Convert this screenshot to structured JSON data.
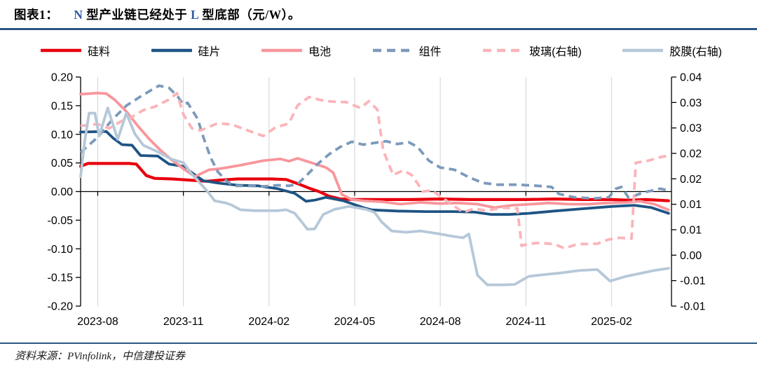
{
  "title": {
    "prefix": "图表1：",
    "segments": [
      {
        "text": "N",
        "color": "#2F5BA7"
      },
      {
        "text": " 型产业链已经处于 ",
        "color": "#000000"
      },
      {
        "text": "L",
        "color": "#2F5BA7"
      },
      {
        "text": " 型底部（元/W）。",
        "color": "#000000"
      }
    ]
  },
  "footer": {
    "source": "资料来源：PVinfolink，中信建投证券"
  },
  "colors": {
    "rule": "#2A5784",
    "grid": "#D9D9D9",
    "axis": "#000000",
    "silicon": "#E8000D",
    "wafer": "#1F5484",
    "cell": "#F8969C",
    "module": "#7C9ABB",
    "glass": "#FBB4B9",
    "film": "#B5C8D9"
  },
  "legend": {
    "items": [
      {
        "id": "silicon",
        "label": "硅料",
        "color": "#E8000D",
        "dash": false
      },
      {
        "id": "wafer",
        "label": "硅片",
        "color": "#1F5484",
        "dash": false
      },
      {
        "id": "cell",
        "label": "电池",
        "color": "#F8969C",
        "dash": false
      },
      {
        "id": "module",
        "label": "组件",
        "color": "#7C9ABB",
        "dash": true
      },
      {
        "id": "glass",
        "label": "玻璃(右轴)",
        "color": "#FBB4B9",
        "dash": true
      },
      {
        "id": "film",
        "label": "胶膜(右轴)",
        "color": "#B5C8D9",
        "dash": false
      }
    ]
  },
  "chart_data": {
    "type": "line",
    "title": "N 型产业链已经处于 L 型底部（元/W）",
    "x_axis": {
      "unit": "months since 2023-08",
      "tick_labels": [
        "2023-08",
        "2023-11",
        "2024-02",
        "2024-05",
        "2024-08",
        "2024-11",
        "2025-02"
      ],
      "tick_positions": [
        0,
        3,
        6,
        9,
        12,
        15,
        18
      ],
      "xlim": [
        -0.6,
        20.1
      ],
      "grid": true
    },
    "y_axis_left": {
      "tick_labels": [
        "0.20",
        "0.15",
        "0.10",
        "0.05",
        "0.00",
        "-0.05",
        "-0.10",
        "-0.15",
        "-0.20"
      ],
      "range": [
        -0.2,
        0.2
      ],
      "zero_line": true
    },
    "y_axis_right": {
      "tick_labels": [
        "0.04",
        "0.03",
        "0.03",
        "0.02",
        "0.02",
        "0.01",
        "0.01",
        "0.00",
        "-0.01",
        "-0.01"
      ],
      "range": [
        -0.012,
        0.042
      ]
    },
    "series": [
      {
        "id": "silicon",
        "name": "硅料",
        "axis": "left",
        "color": "#E8000D",
        "dash": false,
        "width": 4.2,
        "points": [
          [
            -0.6,
            0.044
          ],
          [
            -0.35,
            0.049
          ],
          [
            0.5,
            0.049
          ],
          [
            1.1,
            0.049
          ],
          [
            1.35,
            0.048
          ],
          [
            1.7,
            0.028
          ],
          [
            2.0,
            0.023
          ],
          [
            2.6,
            0.022
          ],
          [
            3.2,
            0.02
          ],
          [
            3.8,
            0.018
          ],
          [
            4.3,
            0.02
          ],
          [
            4.9,
            0.022
          ],
          [
            5.5,
            0.022
          ],
          [
            6.1,
            0.022
          ],
          [
            6.6,
            0.021
          ],
          [
            7.0,
            0.014
          ],
          [
            7.4,
            0.006
          ],
          [
            7.75,
            0.0
          ],
          [
            8.1,
            -0.008
          ],
          [
            8.5,
            -0.013
          ],
          [
            9.0,
            -0.014
          ],
          [
            10.0,
            -0.014
          ],
          [
            11.0,
            -0.014
          ],
          [
            12.0,
            -0.013
          ],
          [
            13.0,
            -0.014
          ],
          [
            14.0,
            -0.014
          ],
          [
            15.0,
            -0.014
          ],
          [
            16.0,
            -0.013
          ],
          [
            17.0,
            -0.014
          ],
          [
            18.0,
            -0.014
          ],
          [
            18.6,
            -0.015
          ],
          [
            19.2,
            -0.014
          ],
          [
            20.0,
            -0.016
          ]
        ]
      },
      {
        "id": "wafer",
        "name": "硅片",
        "axis": "left",
        "color": "#1F5484",
        "dash": false,
        "width": 3.8,
        "points": [
          [
            -0.6,
            0.104
          ],
          [
            0.3,
            0.105
          ],
          [
            0.55,
            0.093
          ],
          [
            0.85,
            0.082
          ],
          [
            1.2,
            0.081
          ],
          [
            1.5,
            0.063
          ],
          [
            2.1,
            0.062
          ],
          [
            2.5,
            0.048
          ],
          [
            3.0,
            0.044
          ],
          [
            3.35,
            0.031
          ],
          [
            3.7,
            0.019
          ],
          [
            4.2,
            0.015
          ],
          [
            4.9,
            0.011
          ],
          [
            5.6,
            0.01
          ],
          [
            6.3,
            0.005
          ],
          [
            6.9,
            -0.003
          ],
          [
            7.3,
            -0.017
          ],
          [
            7.6,
            -0.015
          ],
          [
            8.0,
            -0.01
          ],
          [
            8.6,
            -0.016
          ],
          [
            9.3,
            -0.028
          ],
          [
            9.6,
            -0.032
          ],
          [
            10.5,
            -0.034
          ],
          [
            11.5,
            -0.035
          ],
          [
            12.5,
            -0.035
          ],
          [
            13.2,
            -0.036
          ],
          [
            13.8,
            -0.04
          ],
          [
            14.4,
            -0.04
          ],
          [
            15.1,
            -0.038
          ],
          [
            16.0,
            -0.034
          ],
          [
            17.0,
            -0.03
          ],
          [
            18.0,
            -0.026
          ],
          [
            18.8,
            -0.024
          ],
          [
            19.4,
            -0.028
          ],
          [
            20.0,
            -0.038
          ]
        ]
      },
      {
        "id": "cell",
        "name": "电池",
        "axis": "left",
        "color": "#F8969C",
        "dash": false,
        "width": 3.8,
        "points": [
          [
            -0.6,
            0.17
          ],
          [
            0.0,
            0.172
          ],
          [
            0.3,
            0.171
          ],
          [
            0.6,
            0.16
          ],
          [
            1.0,
            0.14
          ],
          [
            1.4,
            0.115
          ],
          [
            1.8,
            0.092
          ],
          [
            2.2,
            0.072
          ],
          [
            2.6,
            0.055
          ],
          [
            3.0,
            0.04
          ],
          [
            3.4,
            0.026
          ],
          [
            3.9,
            0.038
          ],
          [
            4.3,
            0.04
          ],
          [
            5.0,
            0.046
          ],
          [
            5.8,
            0.054
          ],
          [
            6.4,
            0.057
          ],
          [
            6.7,
            0.053
          ],
          [
            7.0,
            0.058
          ],
          [
            7.5,
            0.05
          ],
          [
            8.0,
            0.042
          ],
          [
            8.25,
            0.033
          ],
          [
            8.55,
            -0.005
          ],
          [
            8.9,
            -0.014
          ],
          [
            9.3,
            -0.016
          ],
          [
            10.0,
            -0.018
          ],
          [
            10.6,
            -0.022
          ],
          [
            11.3,
            -0.019
          ],
          [
            12.0,
            -0.021
          ],
          [
            12.6,
            -0.02
          ],
          [
            13.3,
            -0.022
          ],
          [
            13.9,
            -0.028
          ],
          [
            14.5,
            -0.024
          ],
          [
            15.2,
            -0.022
          ],
          [
            15.8,
            -0.02
          ],
          [
            16.5,
            -0.022
          ],
          [
            17.2,
            -0.022
          ],
          [
            17.8,
            -0.02
          ],
          [
            18.5,
            -0.019
          ],
          [
            19.0,
            -0.017
          ],
          [
            19.5,
            -0.022
          ],
          [
            20.0,
            -0.032
          ]
        ]
      },
      {
        "id": "module",
        "name": "组件",
        "axis": "left",
        "color": "#7C9ABB",
        "dash": true,
        "width": 3.8,
        "points": [
          [
            -0.6,
            0.068
          ],
          [
            0.0,
            0.095
          ],
          [
            0.5,
            0.125
          ],
          [
            1.0,
            0.15
          ],
          [
            1.5,
            0.166
          ],
          [
            1.9,
            0.178
          ],
          [
            2.15,
            0.185
          ],
          [
            2.5,
            0.181
          ],
          [
            2.8,
            0.166
          ],
          [
            3.0,
            0.152
          ],
          [
            3.15,
            0.155
          ],
          [
            3.5,
            0.127
          ],
          [
            3.7,
            0.095
          ],
          [
            3.95,
            0.06
          ],
          [
            4.2,
            0.035
          ],
          [
            4.5,
            0.019
          ],
          [
            4.75,
            0.01
          ],
          [
            5.3,
            0.01
          ],
          [
            5.8,
            0.009
          ],
          [
            6.3,
            0.011
          ],
          [
            6.7,
            0.01
          ],
          [
            7.0,
            0.013
          ],
          [
            7.35,
            0.03
          ],
          [
            7.7,
            0.048
          ],
          [
            8.1,
            0.065
          ],
          [
            8.5,
            0.078
          ],
          [
            8.9,
            0.087
          ],
          [
            9.3,
            0.082
          ],
          [
            9.7,
            0.085
          ],
          [
            10.1,
            0.088
          ],
          [
            10.5,
            0.083
          ],
          [
            10.9,
            0.086
          ],
          [
            11.2,
            0.078
          ],
          [
            11.6,
            0.054
          ],
          [
            12.0,
            0.042
          ],
          [
            12.5,
            0.038
          ],
          [
            13.0,
            0.025
          ],
          [
            13.5,
            0.015
          ],
          [
            14.0,
            0.012
          ],
          [
            14.7,
            0.012
          ],
          [
            15.4,
            0.01
          ],
          [
            15.9,
            0.008
          ],
          [
            16.15,
            -0.004
          ],
          [
            16.7,
            -0.01
          ],
          [
            17.4,
            -0.012
          ],
          [
            17.9,
            -0.01
          ],
          [
            18.15,
            0.005
          ],
          [
            18.35,
            0.008
          ],
          [
            18.6,
            -0.011
          ],
          [
            19.1,
            -0.002
          ],
          [
            19.7,
            0.005
          ],
          [
            20.0,
            0.002
          ]
        ]
      },
      {
        "id": "glass",
        "name": "玻璃(右轴)",
        "axis": "right",
        "color": "#FBB4B9",
        "dash": true,
        "width": 3.8,
        "points": [
          [
            -0.6,
            0.0305
          ],
          [
            0.0,
            0.0309
          ],
          [
            0.4,
            0.0299
          ],
          [
            0.8,
            0.0315
          ],
          [
            1.2,
            0.0326
          ],
          [
            1.6,
            0.0342
          ],
          [
            2.0,
            0.035
          ],
          [
            2.5,
            0.0367
          ],
          [
            2.78,
            0.0382
          ],
          [
            3.0,
            0.0332
          ],
          [
            3.3,
            0.0299
          ],
          [
            3.6,
            0.0294
          ],
          [
            4.2,
            0.0311
          ],
          [
            4.7,
            0.0308
          ],
          [
            5.3,
            0.0293
          ],
          [
            5.8,
            0.0281
          ],
          [
            6.2,
            0.03
          ],
          [
            6.7,
            0.0311
          ],
          [
            7.0,
            0.0353
          ],
          [
            7.4,
            0.0373
          ],
          [
            7.8,
            0.0366
          ],
          [
            8.2,
            0.0362
          ],
          [
            8.7,
            0.0361
          ],
          [
            9.2,
            0.0347
          ],
          [
            9.5,
            0.0363
          ],
          [
            9.8,
            0.0343
          ],
          [
            10.0,
            0.0247
          ],
          [
            10.35,
            0.0189
          ],
          [
            10.7,
            0.02
          ],
          [
            11.0,
            0.0189
          ],
          [
            11.4,
            0.015
          ],
          [
            11.7,
            0.0153
          ],
          [
            12.0,
            0.0139
          ],
          [
            12.8,
            0.0101
          ],
          [
            13.2,
            0.011
          ],
          [
            13.6,
            0.0105
          ],
          [
            14.2,
            0.0112
          ],
          [
            14.7,
            0.011
          ],
          [
            14.85,
            0.0022
          ],
          [
            15.1,
            0.0027
          ],
          [
            15.5,
            0.0029
          ],
          [
            16.0,
            0.0026
          ],
          [
            16.35,
            0.0016
          ],
          [
            16.8,
            0.0026
          ],
          [
            17.5,
            0.0027
          ],
          [
            17.9,
            0.0037
          ],
          [
            18.3,
            0.0041
          ],
          [
            18.7,
            0.0039
          ],
          [
            18.85,
            0.0218
          ],
          [
            19.3,
            0.0223
          ],
          [
            19.7,
            0.0231
          ],
          [
            20.0,
            0.0235
          ]
        ]
      },
      {
        "id": "film",
        "name": "胶膜(右轴)",
        "axis": "right",
        "color": "#B5C8D9",
        "dash": false,
        "width": 3.8,
        "points": [
          [
            -0.6,
            0.0185
          ],
          [
            -0.45,
            0.0272
          ],
          [
            -0.3,
            0.0335
          ],
          [
            -0.1,
            0.0335
          ],
          [
            0.05,
            0.0281
          ],
          [
            0.35,
            0.0347
          ],
          [
            0.7,
            0.0273
          ],
          [
            1.0,
            0.0335
          ],
          [
            1.3,
            0.0286
          ],
          [
            1.6,
            0.0259
          ],
          [
            2.0,
            0.0247
          ],
          [
            2.6,
            0.0226
          ],
          [
            3.0,
            0.0218
          ],
          [
            3.3,
            0.0191
          ],
          [
            3.85,
            0.015
          ],
          [
            4.1,
            0.0128
          ],
          [
            4.5,
            0.0123
          ],
          [
            4.7,
            0.0118
          ],
          [
            5.0,
            0.0107
          ],
          [
            5.5,
            0.0105
          ],
          [
            6.3,
            0.0105
          ],
          [
            6.6,
            0.0107
          ],
          [
            6.9,
            0.0099
          ],
          [
            7.15,
            0.0078
          ],
          [
            7.35,
            0.0061
          ],
          [
            7.6,
            0.0062
          ],
          [
            7.9,
            0.0096
          ],
          [
            8.3,
            0.0108
          ],
          [
            8.8,
            0.0115
          ],
          [
            9.4,
            0.0108
          ],
          [
            9.7,
            0.0101
          ],
          [
            9.95,
            0.0078
          ],
          [
            10.3,
            0.0057
          ],
          [
            10.8,
            0.0054
          ],
          [
            11.3,
            0.0057
          ],
          [
            11.9,
            0.0051
          ],
          [
            12.4,
            0.0045
          ],
          [
            12.8,
            0.0041
          ],
          [
            13.0,
            0.005
          ],
          [
            13.3,
            -0.0047
          ],
          [
            13.65,
            -0.007
          ],
          [
            14.2,
            -0.007
          ],
          [
            14.6,
            -0.0069
          ],
          [
            15.1,
            -0.005
          ],
          [
            15.6,
            -0.0046
          ],
          [
            16.2,
            -0.0042
          ],
          [
            16.9,
            -0.0036
          ],
          [
            17.5,
            -0.0034
          ],
          [
            17.95,
            -0.0061
          ],
          [
            18.5,
            -0.005
          ],
          [
            19.0,
            -0.0043
          ],
          [
            19.5,
            -0.0036
          ],
          [
            20.0,
            -0.0031
          ]
        ]
      }
    ]
  }
}
